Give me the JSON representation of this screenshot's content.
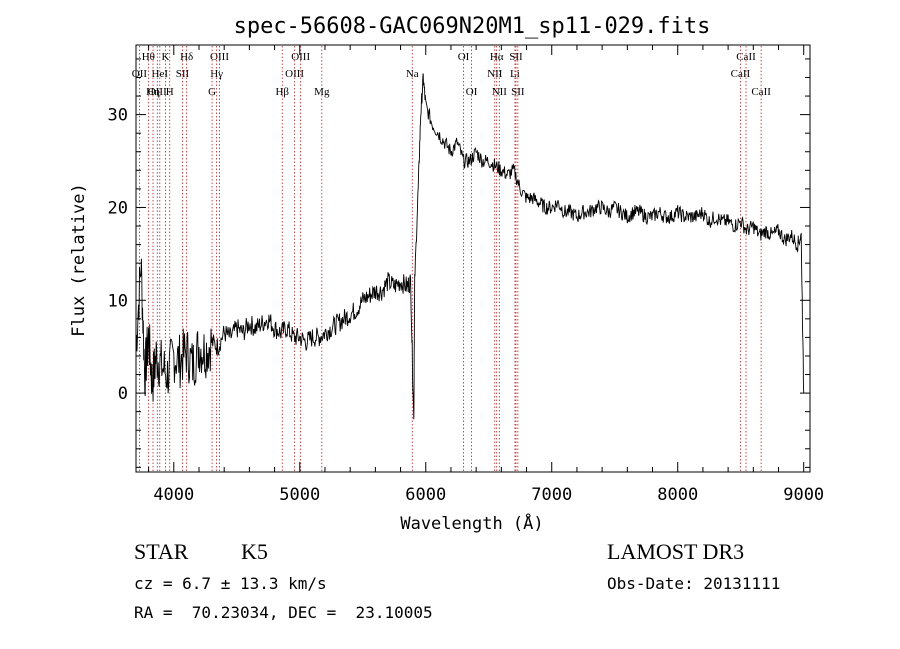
{
  "chart_data": {
    "type": "line",
    "title": "spec-56608-GAC069N20M1_sp11-029.fits",
    "xlabel": "Wavelength (Å)",
    "ylabel": "Flux (relative)",
    "xlim": [
      3700,
      9050
    ],
    "ylim": [
      -8.5,
      37.5
    ],
    "xticks": [
      4000,
      5000,
      6000,
      7000,
      8000,
      9000
    ],
    "yticks": [
      0,
      10,
      20,
      30
    ],
    "x_tick_labels": [
      "4000",
      "5000",
      "6000",
      "7000",
      "8000",
      "9000"
    ],
    "y_tick_labels": [
      "0",
      "10",
      "20",
      "30"
    ],
    "series": [
      {
        "points": [
          [
            3700,
            5
          ],
          [
            3740,
            14
          ],
          [
            3770,
            2
          ],
          [
            3800,
            6
          ],
          [
            3830,
            1
          ],
          [
            3860,
            4
          ],
          [
            3900,
            3
          ],
          [
            3950,
            2
          ],
          [
            4000,
            4
          ],
          [
            4050,
            3.5
          ],
          [
            4100,
            4.5
          ],
          [
            4150,
            3
          ],
          [
            4200,
            5
          ],
          [
            4250,
            4.5
          ],
          [
            4300,
            5.5
          ],
          [
            4350,
            5
          ],
          [
            4400,
            6.5
          ],
          [
            4450,
            6
          ],
          [
            4500,
            7
          ],
          [
            4550,
            6.5
          ],
          [
            4600,
            7.5
          ],
          [
            4650,
            7
          ],
          [
            4700,
            7.5
          ],
          [
            4750,
            8
          ],
          [
            4800,
            7
          ],
          [
            4850,
            6.5
          ],
          [
            4900,
            7
          ],
          [
            4950,
            6
          ],
          [
            5000,
            6
          ],
          [
            5050,
            5.5
          ],
          [
            5100,
            6
          ],
          [
            5150,
            6
          ],
          [
            5200,
            6.5
          ],
          [
            5250,
            7
          ],
          [
            5300,
            7.5
          ],
          [
            5350,
            8
          ],
          [
            5400,
            8.5
          ],
          [
            5450,
            9
          ],
          [
            5500,
            10
          ],
          [
            5550,
            10.5
          ],
          [
            5600,
            11
          ],
          [
            5650,
            11
          ],
          [
            5700,
            12
          ],
          [
            5750,
            11.5
          ],
          [
            5800,
            12
          ],
          [
            5850,
            11.5
          ],
          [
            5880,
            12
          ],
          [
            5905,
            -3
          ],
          [
            5912,
            12
          ],
          [
            5940,
            22
          ],
          [
            5960,
            30
          ],
          [
            5980,
            34
          ],
          [
            6000,
            31
          ],
          [
            6050,
            29
          ],
          [
            6100,
            28
          ],
          [
            6150,
            27
          ],
          [
            6200,
            26
          ],
          [
            6250,
            27
          ],
          [
            6300,
            25
          ],
          [
            6350,
            25
          ],
          [
            6400,
            26
          ],
          [
            6450,
            25
          ],
          [
            6500,
            25
          ],
          [
            6550,
            24.5
          ],
          [
            6600,
            24
          ],
          [
            6650,
            23.5
          ],
          [
            6700,
            24
          ],
          [
            6750,
            22
          ],
          [
            6800,
            21
          ],
          [
            6850,
            21
          ],
          [
            6900,
            20.5
          ],
          [
            6950,
            20
          ],
          [
            7000,
            20
          ],
          [
            7050,
            20.5
          ],
          [
            7100,
            19.5
          ],
          [
            7150,
            19.5
          ],
          [
            7200,
            19
          ],
          [
            7250,
            19.5
          ],
          [
            7300,
            19.5
          ],
          [
            7350,
            20
          ],
          [
            7400,
            20
          ],
          [
            7450,
            19.5
          ],
          [
            7500,
            20
          ],
          [
            7550,
            19.5
          ],
          [
            7600,
            19
          ],
          [
            7650,
            19.5
          ],
          [
            7700,
            19.5
          ],
          [
            7750,
            19
          ],
          [
            7800,
            19
          ],
          [
            7850,
            19.5
          ],
          [
            7900,
            19
          ],
          [
            7950,
            19
          ],
          [
            8000,
            19.5
          ],
          [
            8050,
            19
          ],
          [
            8100,
            19
          ],
          [
            8150,
            19
          ],
          [
            8200,
            19.5
          ],
          [
            8250,
            18.5
          ],
          [
            8300,
            19
          ],
          [
            8350,
            18.5
          ],
          [
            8400,
            18.5
          ],
          [
            8450,
            18
          ],
          [
            8500,
            18.5
          ],
          [
            8550,
            17.5
          ],
          [
            8600,
            18
          ],
          [
            8650,
            17
          ],
          [
            8700,
            17.5
          ],
          [
            8750,
            17
          ],
          [
            8800,
            17.5
          ],
          [
            8850,
            16.5
          ],
          [
            8900,
            17
          ],
          [
            8950,
            16
          ],
          [
            8980,
            17
          ],
          [
            9000,
            0
          ]
        ],
        "color": "#000000"
      }
    ],
    "lines": [
      {
        "label": "Hθ",
        "x": 3798,
        "row": 0
      },
      {
        "label": "OII",
        "x": 3727,
        "row": 1
      },
      {
        "label": "OIII",
        "x": 3869,
        "row": 2
      },
      {
        "label": "K",
        "x": 3934,
        "row": 0
      },
      {
        "label": "HeI",
        "x": 3889,
        "row": 1
      },
      {
        "label": "Hη",
        "x": 3835,
        "row": 2
      },
      {
        "label": "H",
        "x": 3968,
        "row": 2
      },
      {
        "label": "SII",
        "x": 4069,
        "row": 1
      },
      {
        "label": "Hδ",
        "x": 4102,
        "row": 0
      },
      {
        "label": "OIII",
        "x": 4363,
        "row": 0
      },
      {
        "label": "Hγ",
        "x": 4340,
        "row": 1
      },
      {
        "label": "G",
        "x": 4304,
        "row": 2
      },
      {
        "label": "OIII",
        "x": 5007,
        "row": 0
      },
      {
        "label": "OIII",
        "x": 4959,
        "row": 1
      },
      {
        "label": "Hβ",
        "x": 4861,
        "row": 2
      },
      {
        "label": "Mg",
        "x": 5175,
        "row": 2
      },
      {
        "label": "Na",
        "x": 5893,
        "row": 1
      },
      {
        "label": "OI",
        "x": 6300,
        "row": 0
      },
      {
        "label": "OI",
        "x": 6364,
        "row": 2
      },
      {
        "label": "Hα",
        "x": 6563,
        "row": 0
      },
      {
        "label": "SII",
        "x": 6716,
        "row": 0
      },
      {
        "label": "NII",
        "x": 6548,
        "row": 1
      },
      {
        "label": "Li",
        "x": 6708,
        "row": 1
      },
      {
        "label": "NII",
        "x": 6584,
        "row": 2
      },
      {
        "label": "SII",
        "x": 6731,
        "row": 2
      },
      {
        "label": "CaII",
        "x": 8542,
        "row": 0
      },
      {
        "label": "CaII",
        "x": 8498,
        "row": 1
      },
      {
        "label": "CaII",
        "x": 8662,
        "row": 2
      }
    ],
    "line_color": "#b22222",
    "grid": false
  },
  "footer": {
    "class_label": "STAR",
    "subclass": "K5",
    "cz": "cz = 6.7 ± 13.3 km/s",
    "coords": "RA =  70.23034, DEC =  23.10005",
    "survey": "LAMOST DR3",
    "obs_date": "Obs-Date: 20131111"
  }
}
